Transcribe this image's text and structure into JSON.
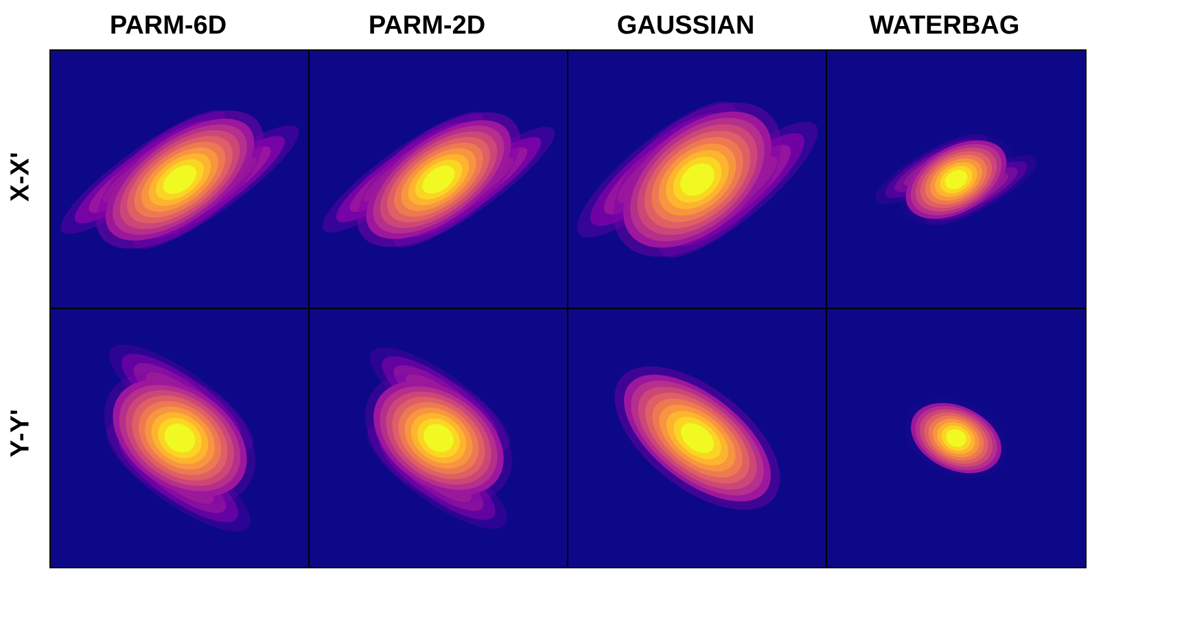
{
  "chart_data": {
    "type": "heatmap",
    "colormap": "plasma",
    "background_color": "#0d0887",
    "grid": false,
    "axis_ticks": false,
    "columns": [
      "PARM-6D",
      "PARM-2D",
      "GAUSSIAN",
      "WATERBAG"
    ],
    "rows": [
      "X-X'",
      "Y-Y'"
    ],
    "panels": [
      {
        "row": "X-X'",
        "column": "PARM-6D",
        "shape": "s-twisted",
        "core_angle_deg": -36,
        "core_aspect": 2.1,
        "extent": 0.82,
        "halo": 1.0
      },
      {
        "row": "X-X'",
        "column": "PARM-2D",
        "shape": "s-twisted",
        "core_angle_deg": -36,
        "core_aspect": 2.1,
        "extent": 0.8,
        "halo": 0.95
      },
      {
        "row": "X-X'",
        "column": "GAUSSIAN",
        "shape": "s-twisted",
        "core_angle_deg": -40,
        "core_aspect": 1.7,
        "extent": 0.82,
        "halo": 0.85
      },
      {
        "row": "X-X'",
        "column": "WATERBAG",
        "shape": "s-twisted",
        "core_angle_deg": -30,
        "core_aspect": 1.7,
        "extent": 0.52,
        "halo": 0.2
      },
      {
        "row": "Y-Y'",
        "column": "PARM-6D",
        "shape": "s-twisted",
        "core_angle_deg": 35,
        "core_aspect": 1.5,
        "extent": 0.7,
        "halo": 0.55
      },
      {
        "row": "Y-Y'",
        "column": "PARM-2D",
        "shape": "s-twisted",
        "core_angle_deg": 35,
        "core_aspect": 1.5,
        "extent": 0.68,
        "halo": 0.55
      },
      {
        "row": "Y-Y'",
        "column": "GAUSSIAN",
        "shape": "ellipse",
        "core_angle_deg": 38,
        "core_aspect": 2.0,
        "extent": 0.82,
        "halo": 0.8
      },
      {
        "row": "Y-Y'",
        "column": "WATERBAG",
        "shape": "ellipse",
        "core_angle_deg": 25,
        "core_aspect": 1.5,
        "extent": 0.45,
        "halo": 0.15
      }
    ]
  }
}
